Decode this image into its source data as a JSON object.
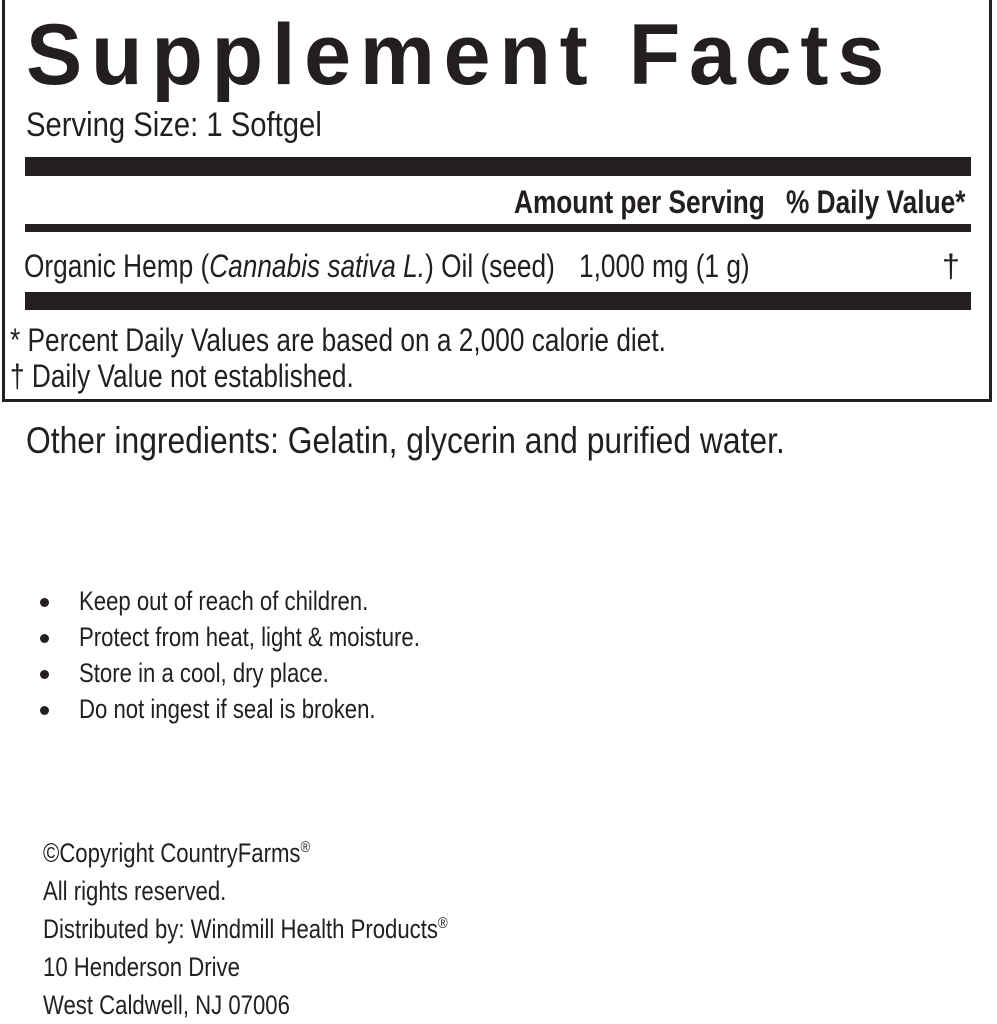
{
  "label": {
    "title": "Supplement Facts",
    "serving_size": "Serving Size: 1 Softgel",
    "header_amount": "Amount per Serving",
    "header_dv": "% Daily Value*",
    "ingredient": {
      "name_prefix": "Organic Hemp (",
      "name_italic": "Cannabis sativa L.",
      "name_suffix": ") Oil (seed)",
      "amount": "1,000 mg (1 g)",
      "dv": "†"
    },
    "footnote_1": "* Percent Daily Values are based on a 2,000 calorie diet.",
    "footnote_2": "† Daily Value not established."
  },
  "other_ingredients": "Other ingredients: Gelatin, glycerin and purified water.",
  "warnings": [
    "Keep out of reach of children.",
    "Protect from heat, light & moisture.",
    "Store in a cool, dry place.",
    "Do not ingest if seal is broken."
  ],
  "footer": {
    "copyright": "©Copyright CountryFarms",
    "registered_mark": "®",
    "rights": "All rights reserved.",
    "distributed": "Distributed by: Windmill Health Products",
    "address_1": "10 Henderson Drive",
    "address_2": "West Caldwell, NJ 07006"
  }
}
